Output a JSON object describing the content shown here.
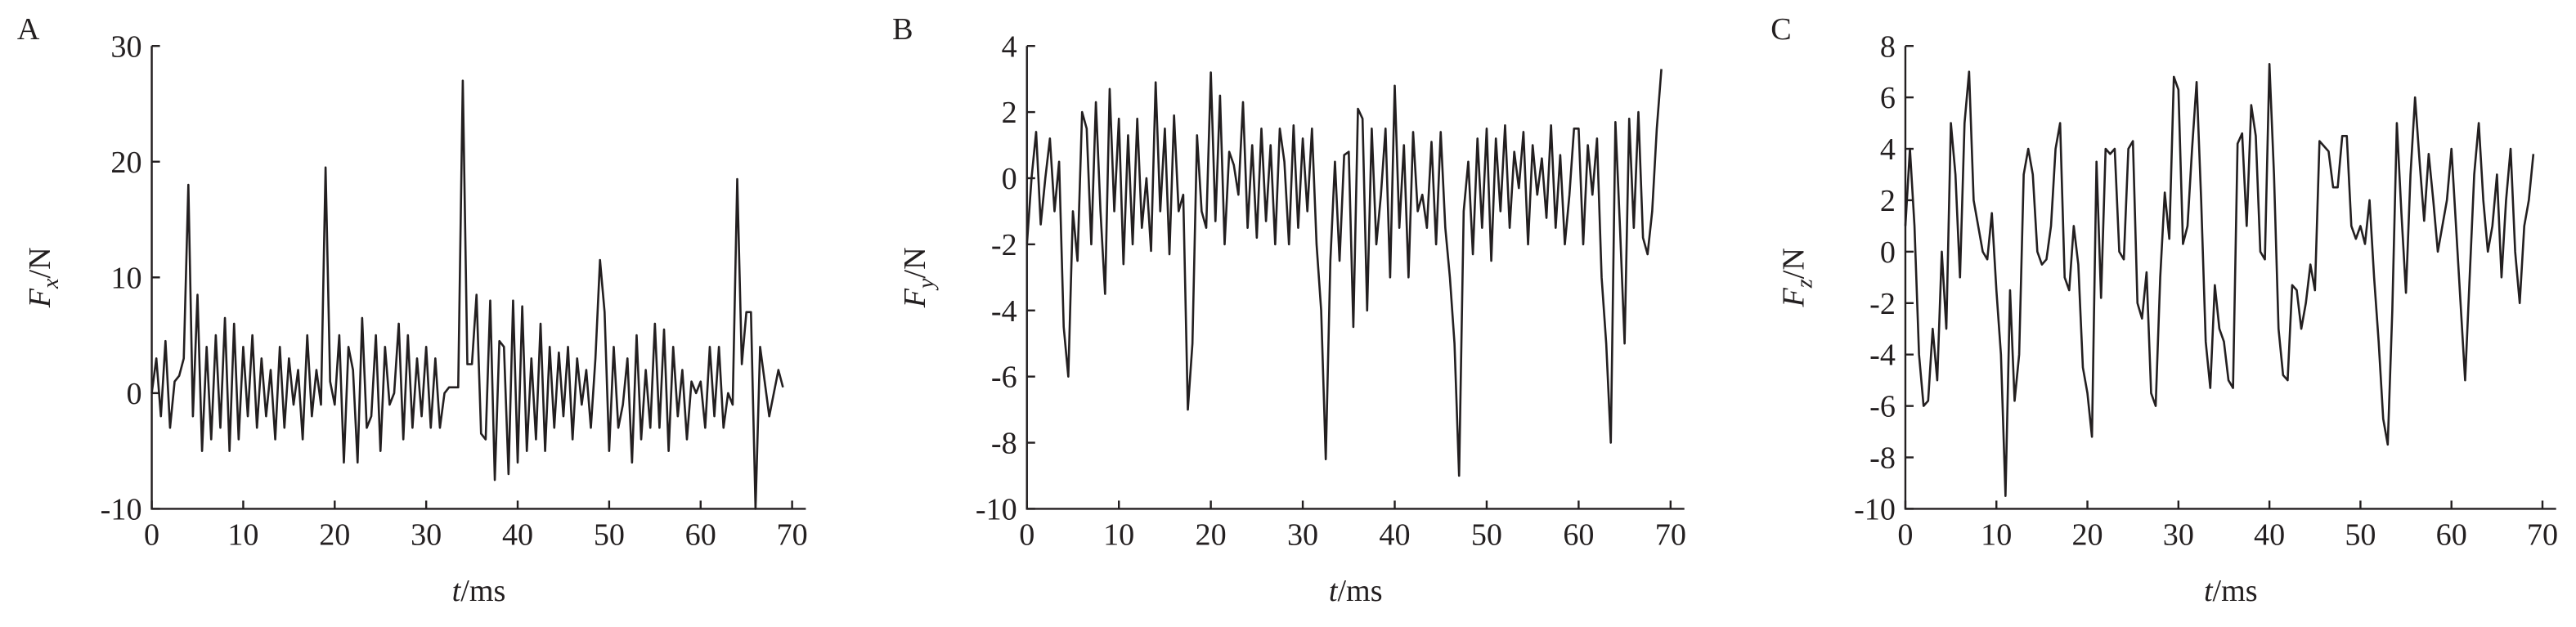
{
  "chart_data": [
    {
      "type": "line",
      "panel": "A",
      "xlabel": {
        "symbol": "t",
        "unit": "/ms"
      },
      "ylabel": {
        "symbol": "F",
        "subscript": "x",
        "unit": "/N"
      },
      "xlim": [
        0,
        71.5
      ],
      "xticks": [
        0,
        10,
        20,
        30,
        40,
        50,
        60,
        70
      ],
      "ylim": [
        -10,
        30
      ],
      "yticks": [
        -10,
        0,
        10,
        20,
        30
      ],
      "color": "#231f20",
      "x": [
        0,
        0.5,
        1,
        1.5,
        2,
        2.5,
        3,
        3.5,
        4,
        4.5,
        5,
        5.5,
        6,
        6.5,
        7,
        7.5,
        8,
        8.5,
        9,
        9.5,
        10,
        10.5,
        11,
        11.5,
        12,
        12.5,
        13,
        13.5,
        14,
        14.5,
        15,
        15.5,
        16,
        16.5,
        17,
        17.5,
        18,
        18.5,
        19,
        19.5,
        20,
        20.5,
        21,
        21.5,
        22,
        22.5,
        23,
        23.5,
        24,
        24.5,
        25,
        25.5,
        26,
        26.5,
        27,
        27.5,
        28,
        28.5,
        29,
        29.5,
        30,
        30.5,
        31,
        31.5,
        32,
        32.5,
        33,
        33.5,
        34,
        34.5,
        35,
        35.5,
        36,
        36.5,
        37,
        37.5,
        38,
        38.5,
        39,
        39.5,
        40,
        40.5,
        41,
        41.5,
        42,
        42.5,
        43,
        43.5,
        44,
        44.5,
        45,
        45.5,
        46,
        46.5,
        47,
        47.5,
        48,
        48.5,
        49,
        49.5,
        50,
        50.5,
        51,
        51.5,
        52,
        52.5,
        53,
        53.5,
        54,
        54.5,
        55,
        55.5,
        56,
        56.5,
        57,
        57.5,
        58,
        58.5,
        59,
        59.5,
        60,
        60.5,
        61,
        61.5,
        62,
        62.5,
        63,
        63.5,
        64,
        64.5,
        65,
        65.5,
        66,
        66.5,
        67,
        67.5,
        68,
        68.5,
        69
      ],
      "values": [
        0,
        3,
        -2,
        4.5,
        -3,
        1,
        1.5,
        3,
        18,
        -2,
        8.5,
        -5,
        4,
        -4,
        5,
        -3,
        6.5,
        -5,
        6,
        -4,
        4,
        -2,
        5,
        -3,
        3,
        -2,
        2,
        -4,
        4,
        -3,
        3,
        -1,
        2,
        -4,
        5,
        -2,
        2,
        -1,
        19.5,
        1,
        -1,
        5,
        -6,
        4,
        2,
        -6,
        6.5,
        -3,
        -2,
        5,
        -5,
        4,
        -1,
        0,
        6,
        -4,
        5,
        -3,
        3,
        -2,
        4,
        -3,
        3,
        -3,
        0,
        0.5,
        0.5,
        0.5,
        27,
        2.5,
        2.5,
        8.5,
        -3.5,
        -4,
        8,
        -7.5,
        4.5,
        4,
        -7,
        8,
        -6,
        7.5,
        -5,
        3,
        -4,
        6,
        -5,
        4,
        -3,
        3.5,
        -2,
        4,
        -4,
        3,
        -1,
        2,
        -3,
        3,
        11.5,
        7,
        -5,
        4,
        -3,
        -1,
        3,
        -6,
        5,
        -4,
        2,
        -3,
        6,
        -3,
        5.5,
        -5,
        4,
        -2,
        2,
        -4,
        1,
        0,
        1,
        -3,
        4,
        -2,
        4,
        -3,
        0,
        -1,
        18.5,
        2.5,
        7,
        7,
        -10,
        4,
        1,
        -2,
        0,
        2,
        0.5
      ]
    },
    {
      "type": "line",
      "panel": "B",
      "xlabel": {
        "symbol": "t",
        "unit": "/ms"
      },
      "ylabel": {
        "symbol": "F",
        "subscript": "y",
        "unit": "/N"
      },
      "xlim": [
        0,
        71.5
      ],
      "xticks": [
        0,
        10,
        20,
        30,
        40,
        50,
        60,
        70
      ],
      "ylim": [
        -10,
        4
      ],
      "yticks": [
        -10,
        -8,
        -6,
        -4,
        -2,
        0,
        2,
        4
      ],
      "color": "#231f20",
      "x": [
        0,
        0.5,
        1,
        1.5,
        2,
        2.5,
        3,
        3.5,
        4,
        4.5,
        5,
        5.5,
        6,
        6.5,
        7,
        7.5,
        8,
        8.5,
        9,
        9.5,
        10,
        10.5,
        11,
        11.5,
        12,
        12.5,
        13,
        13.5,
        14,
        14.5,
        15,
        15.5,
        16,
        16.5,
        17,
        17.5,
        18,
        18.5,
        19,
        19.5,
        20,
        20.5,
        21,
        21.5,
        22,
        22.5,
        23,
        23.5,
        24,
        24.5,
        25,
        25.5,
        26,
        26.5,
        27,
        27.5,
        28,
        28.5,
        29,
        29.5,
        30,
        30.5,
        31,
        31.5,
        32,
        32.5,
        33,
        33.5,
        34,
        34.5,
        35,
        35.5,
        36,
        36.5,
        37,
        37.5,
        38,
        38.5,
        39,
        39.5,
        40,
        40.5,
        41,
        41.5,
        42,
        42.5,
        43,
        43.5,
        44,
        44.5,
        45,
        45.5,
        46,
        46.5,
        47,
        47.5,
        48,
        48.5,
        49,
        49.5,
        50,
        50.5,
        51,
        51.5,
        52,
        52.5,
        53,
        53.5,
        54,
        54.5,
        55,
        55.5,
        56,
        56.5,
        57,
        57.5,
        58,
        58.5,
        59,
        59.5,
        60,
        60.5,
        61,
        61.5,
        62,
        62.5,
        63,
        63.5,
        64,
        64.5,
        65,
        65.5,
        66,
        66.5,
        67,
        67.5,
        68,
        68.5,
        69
      ],
      "values": [
        -2,
        0,
        1.4,
        -1.4,
        0,
        1.2,
        -1,
        0.5,
        -4.5,
        -6,
        -1,
        -2.5,
        2,
        1.5,
        -2,
        2.3,
        -1,
        -3.5,
        2.7,
        -1,
        1.8,
        -2.6,
        1.3,
        -2,
        1.8,
        -1.5,
        0,
        -2.2,
        2.9,
        -1,
        1.5,
        -2.3,
        1.9,
        -1,
        -0.5,
        -7,
        -5,
        1.3,
        -1,
        -1.5,
        3.2,
        -1.3,
        2.5,
        -2,
        0.8,
        0.4,
        -0.5,
        2.3,
        -1.5,
        1,
        -1.8,
        1.5,
        -1.3,
        1,
        -2,
        1.5,
        0.5,
        -2,
        1.6,
        -1.5,
        1.2,
        -1,
        1.5,
        -2,
        -4,
        -8.5,
        -2.5,
        0.5,
        -2.5,
        0.7,
        0.8,
        -4.5,
        2.1,
        1.8,
        -4,
        1.5,
        -2,
        -0.5,
        1.5,
        -3,
        2.8,
        -1.5,
        1,
        -3,
        1.4,
        -1,
        -0.5,
        -1.5,
        1.1,
        -2,
        1.4,
        -1.5,
        -3,
        -5,
        -9,
        -1,
        0.5,
        -2.3,
        1.2,
        -1.5,
        1.5,
        -2.5,
        1.2,
        -1,
        1.6,
        -1.5,
        0.8,
        -0.3,
        1.4,
        -2,
        1,
        -0.5,
        0.6,
        -1.2,
        1.6,
        -1.5,
        0.7,
        -2,
        -0.5,
        1.5,
        1.5,
        -2,
        1,
        -0.5,
        1.2,
        -3,
        -5,
        -8,
        1.7,
        -1.5,
        -5,
        1.8,
        -1.5,
        2,
        -1.8,
        -2.3,
        -1,
        1.5,
        3.3
      ]
    },
    {
      "type": "line",
      "panel": "C",
      "xlabel": {
        "symbol": "t",
        "unit": "/ms"
      },
      "ylabel": {
        "symbol": "F",
        "subscript": "z",
        "unit": "/N"
      },
      "xlim": [
        0,
        71.5
      ],
      "xticks": [
        0,
        10,
        20,
        30,
        40,
        50,
        60,
        70
      ],
      "ylim": [
        -10,
        8
      ],
      "yticks": [
        -10,
        -8,
        -6,
        -4,
        -2,
        0,
        2,
        4,
        6,
        8
      ],
      "color": "#231f20",
      "x": [
        0,
        0.5,
        1,
        1.5,
        2,
        2.5,
        3,
        3.5,
        4,
        4.5,
        5,
        5.5,
        6,
        6.5,
        7,
        7.5,
        8,
        8.5,
        9,
        9.5,
        10,
        10.5,
        11,
        11.5,
        12,
        12.5,
        13,
        13.5,
        14,
        14.5,
        15,
        15.5,
        16,
        16.5,
        17,
        17.5,
        18,
        18.5,
        19,
        19.5,
        20,
        20.5,
        21,
        21.5,
        22,
        22.5,
        23,
        23.5,
        24,
        24.5,
        25,
        25.5,
        26,
        26.5,
        27,
        27.5,
        28,
        28.5,
        29,
        29.5,
        30,
        30.5,
        31,
        31.5,
        32,
        32.5,
        33,
        33.5,
        34,
        34.5,
        35,
        35.5,
        36,
        36.5,
        37,
        37.5,
        38,
        38.5,
        39,
        39.5,
        40,
        40.5,
        41,
        41.5,
        42,
        42.5,
        43,
        43.5,
        44,
        44.5,
        45,
        45.5,
        46,
        46.5,
        47,
        47.5,
        48,
        48.5,
        49,
        49.5,
        50,
        50.5,
        51,
        51.5,
        52,
        52.5,
        53,
        53.5,
        54,
        54.5,
        55,
        55.5,
        56,
        56.5,
        57,
        57.5,
        58,
        58.5,
        59,
        59.5,
        60,
        60.5,
        61,
        61.5,
        62,
        62.5,
        63,
        63.5,
        64,
        64.5,
        65,
        65.5,
        66,
        66.5,
        67,
        67.5,
        68,
        68.5,
        69
      ],
      "values": [
        1,
        4,
        1,
        -4,
        -6,
        -5.8,
        -3,
        -5,
        0,
        -3,
        5,
        3,
        -1,
        5,
        7,
        2,
        1,
        0,
        -0.3,
        1.5,
        -1.5,
        -4,
        -9.5,
        -1.5,
        -5.8,
        -4,
        3,
        4,
        3,
        0,
        -0.5,
        -0.3,
        1,
        4,
        5,
        -1,
        -1.5,
        1,
        -0.5,
        -4.5,
        -5.5,
        -7.2,
        3.5,
        -1.8,
        4,
        3.8,
        4,
        0,
        -0.3,
        4,
        4.3,
        -2,
        -2.6,
        -0.8,
        -5.5,
        -6,
        -1,
        2.3,
        0.5,
        6.8,
        6.3,
        0.3,
        1,
        4,
        6.6,
        2,
        -3.5,
        -5.3,
        -1.3,
        -3,
        -3.5,
        -5,
        -5.3,
        4.2,
        4.6,
        1,
        5.7,
        4.5,
        0,
        -0.3,
        7.3,
        3,
        -3,
        -4.8,
        -5,
        -1.3,
        -1.5,
        -3,
        -2,
        -0.5,
        -1.5,
        4.3,
        4.1,
        3.9,
        2.5,
        2.5,
        4.5,
        4.5,
        1,
        0.5,
        1,
        0.3,
        2,
        -1,
        -3.5,
        -6.5,
        -7.5,
        -2.3,
        5,
        1.5,
        -1.6,
        3,
        6,
        3.5,
        1.2,
        3.8,
        2,
        0,
        1,
        2,
        4,
        1,
        -2,
        -5,
        -1,
        3,
        5,
        2,
        0,
        1,
        3,
        -1,
        2,
        4,
        0,
        -2,
        1,
        2,
        3.8
      ]
    }
  ]
}
